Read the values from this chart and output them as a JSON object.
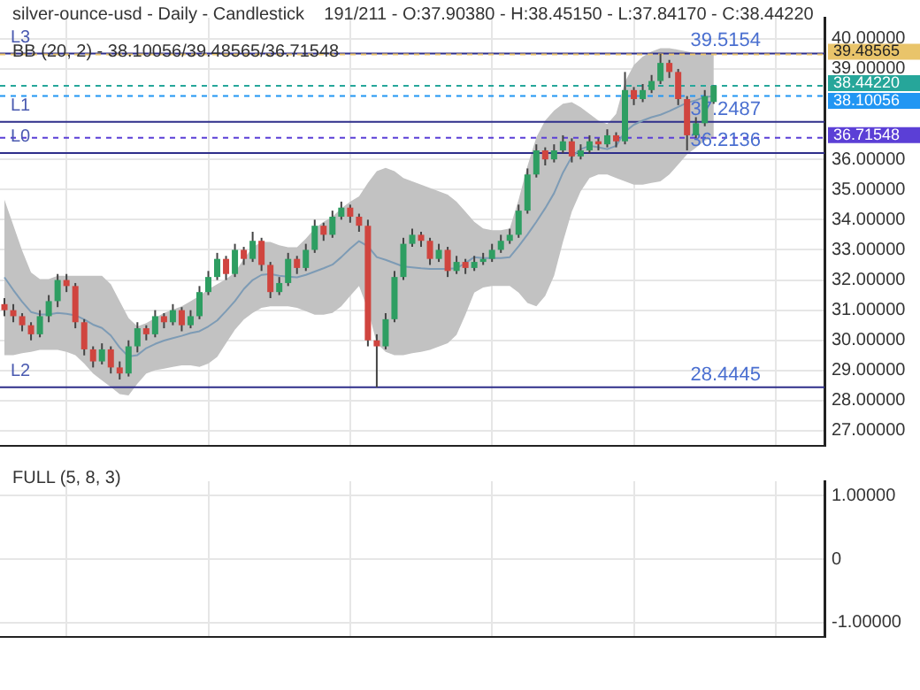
{
  "chart_data": [
    {
      "type": "candlestick",
      "title": "silver-ounce-usd - Daily - Candlestick    191/211 - O:37.90380 - H:38.45150 - L:37.84170 - C:38.44220",
      "subtitle": "BB (20, 2) - 38.10056/39.48565/36.71548",
      "categories": [
        null,
        null,
        null,
        null,
        null,
        null,
        null,
        null,
        null,
        null,
        null,
        null,
        null,
        null,
        null,
        null,
        null,
        null,
        null,
        null,
        null,
        null,
        null,
        null,
        null,
        null,
        null,
        null,
        null,
        null,
        null,
        null,
        null,
        null,
        null,
        null,
        null,
        null,
        null,
        null,
        null,
        null,
        null,
        null,
        null,
        null,
        null,
        null,
        null,
        null,
        null,
        null,
        null,
        null,
        null,
        null,
        null,
        null,
        null,
        null,
        null,
        null,
        null,
        null,
        null,
        null,
        null,
        null,
        null,
        null,
        null,
        null,
        null,
        null,
        null,
        null,
        null,
        null,
        null,
        null,
        null,
        null,
        null,
        null,
        null,
        null,
        null,
        null,
        null,
        null,
        null,
        null,
        null
      ],
      "ohlc": [
        [
          31.2,
          31.4,
          30.8,
          31.0
        ],
        [
          31.0,
          31.2,
          30.6,
          30.8
        ],
        [
          30.8,
          30.9,
          30.3,
          30.5
        ],
        [
          30.5,
          30.6,
          30.0,
          30.2
        ],
        [
          30.2,
          31.0,
          30.1,
          30.8
        ],
        [
          30.8,
          31.5,
          30.6,
          31.3
        ],
        [
          31.3,
          32.2,
          31.1,
          32.0
        ],
        [
          32.0,
          32.2,
          31.6,
          31.8
        ],
        [
          31.8,
          31.9,
          30.4,
          30.6
        ],
        [
          30.6,
          30.7,
          29.5,
          29.7
        ],
        [
          29.7,
          29.8,
          29.1,
          29.3
        ],
        [
          29.3,
          29.9,
          29.2,
          29.7
        ],
        [
          29.7,
          29.8,
          28.9,
          29.1
        ],
        [
          29.1,
          29.3,
          28.7,
          28.9
        ],
        [
          28.9,
          30.0,
          28.8,
          29.8
        ],
        [
          29.8,
          30.6,
          29.6,
          30.4
        ],
        [
          30.4,
          30.5,
          30.0,
          30.2
        ],
        [
          30.2,
          31.0,
          30.1,
          30.8
        ],
        [
          30.8,
          30.9,
          30.4,
          30.6
        ],
        [
          30.6,
          31.2,
          30.5,
          31.0
        ],
        [
          31.0,
          31.1,
          30.3,
          30.5
        ],
        [
          30.5,
          31.0,
          30.4,
          30.8
        ],
        [
          30.8,
          31.8,
          30.7,
          31.6
        ],
        [
          31.6,
          32.3,
          31.5,
          32.1
        ],
        [
          32.1,
          32.9,
          32.0,
          32.7
        ],
        [
          32.7,
          32.8,
          32.0,
          32.2
        ],
        [
          32.2,
          33.2,
          32.1,
          33.0
        ],
        [
          33.0,
          33.1,
          32.5,
          32.7
        ],
        [
          32.7,
          33.6,
          32.6,
          33.3
        ],
        [
          33.3,
          33.4,
          32.3,
          32.5
        ],
        [
          32.5,
          32.6,
          31.4,
          31.6
        ],
        [
          31.6,
          32.1,
          31.5,
          31.9
        ],
        [
          31.9,
          32.9,
          31.8,
          32.7
        ],
        [
          32.7,
          32.8,
          32.2,
          32.4
        ],
        [
          32.4,
          33.2,
          32.3,
          33.0
        ],
        [
          33.0,
          34.0,
          32.9,
          33.8
        ],
        [
          33.8,
          33.9,
          33.3,
          33.5
        ],
        [
          33.5,
          34.3,
          33.4,
          34.1
        ],
        [
          34.1,
          34.6,
          34.0,
          34.4
        ],
        [
          34.4,
          34.5,
          33.9,
          34.1
        ],
        [
          34.1,
          34.2,
          33.6,
          33.8
        ],
        [
          33.8,
          34.0,
          29.8,
          30.0
        ],
        [
          30.0,
          30.2,
          28.4445,
          29.8
        ],
        [
          29.8,
          30.9,
          29.7,
          30.7
        ],
        [
          30.7,
          32.3,
          30.6,
          32.1
        ],
        [
          32.1,
          33.4,
          32.0,
          33.2
        ],
        [
          33.2,
          33.7,
          33.1,
          33.5
        ],
        [
          33.5,
          33.6,
          33.1,
          33.3
        ],
        [
          33.3,
          33.4,
          32.5,
          32.7
        ],
        [
          32.7,
          33.2,
          32.6,
          33.0
        ],
        [
          33.0,
          33.1,
          32.1,
          32.3
        ],
        [
          32.3,
          32.8,
          32.2,
          32.6
        ],
        [
          32.6,
          32.7,
          32.2,
          32.4
        ],
        [
          32.4,
          32.8,
          32.3,
          32.6
        ],
        [
          32.6,
          32.9,
          32.5,
          32.7
        ],
        [
          32.7,
          33.2,
          32.6,
          33.0
        ],
        [
          33.0,
          33.5,
          32.9,
          33.3
        ],
        [
          33.3,
          33.7,
          33.2,
          33.5
        ],
        [
          33.5,
          34.5,
          33.4,
          34.3
        ],
        [
          34.3,
          35.7,
          34.2,
          35.5
        ],
        [
          35.5,
          36.5,
          35.4,
          36.3
        ],
        [
          36.3,
          36.4,
          35.8,
          36.0
        ],
        [
          36.0,
          36.5,
          35.9,
          36.3
        ],
        [
          36.3,
          36.8,
          36.2,
          36.6
        ],
        [
          36.6,
          36.7,
          35.9,
          36.1
        ],
        [
          36.1,
          36.5,
          36.0,
          36.3
        ],
        [
          36.3,
          36.8,
          36.2,
          36.6
        ],
        [
          36.6,
          36.7,
          36.3,
          36.5
        ],
        [
          36.5,
          37.0,
          36.4,
          36.8
        ],
        [
          36.8,
          36.9,
          36.4,
          36.6
        ],
        [
          36.6,
          38.9,
          36.5,
          38.3
        ],
        [
          38.3,
          38.4,
          37.8,
          38.0
        ],
        [
          38.0,
          38.5,
          37.9,
          38.3
        ],
        [
          38.3,
          38.8,
          38.2,
          38.6
        ],
        [
          38.6,
          39.5,
          38.5,
          39.2
        ],
        [
          39.2,
          39.3,
          38.7,
          38.9
        ],
        [
          38.9,
          39.0,
          37.8,
          38.0
        ],
        [
          38.0,
          38.1,
          36.3,
          36.8
        ],
        [
          36.8,
          37.4,
          36.7,
          37.2
        ],
        [
          37.2,
          38.3,
          37.1,
          38.1
        ],
        [
          37.9038,
          38.4515,
          37.8417,
          38.4422
        ],
        null,
        null,
        null,
        null,
        null,
        null,
        null,
        null,
        null,
        null,
        null,
        null
      ],
      "series": [
        {
          "type": "line",
          "color": "#7d9bb5",
          "values": [
            32.09,
            31.67,
            31.28,
            30.94,
            30.86,
            30.86,
            30.91,
            30.88,
            30.83,
            30.69,
            30.52,
            30.41,
            30.16,
            29.76,
            29.46,
            29.51,
            29.74,
            29.88,
            29.99,
            30.07,
            30.15,
            30.24,
            30.3,
            30.46,
            30.66,
            30.97,
            31.3,
            31.7,
            32.0,
            32.17,
            32.2,
            32.14,
            32.11,
            32.09,
            32.17,
            32.28,
            32.39,
            32.51,
            32.76,
            33.04,
            33.29,
            33.12,
            32.76,
            32.67,
            32.56,
            32.45,
            32.42,
            32.39,
            32.37,
            32.37,
            32.37,
            32.39,
            32.56,
            32.76,
            32.73,
            32.73,
            32.73,
            32.76,
            33.12,
            33.51,
            33.93,
            34.38,
            34.88,
            35.56,
            36.09,
            36.34,
            36.45,
            36.4,
            36.34,
            36.45,
            36.92,
            37.15,
            37.29,
            37.4,
            37.48,
            37.6,
            37.74,
            37.88,
            37.96,
            38.07,
            38.1,
            null,
            null,
            null,
            null,
            null,
            null,
            null,
            null,
            null,
            null,
            null,
            null
          ],
          "upper": [
            34.66,
            33.82,
            32.98,
            32.25,
            32.03,
            32.03,
            32.14,
            32.14,
            32.14,
            32.14,
            32.14,
            32.14,
            31.86,
            31.3,
            30.74,
            30.46,
            30.57,
            30.74,
            30.91,
            31.02,
            31.13,
            31.3,
            31.47,
            31.69,
            31.86,
            32.03,
            32.25,
            32.7,
            33.09,
            33.26,
            33.26,
            33.15,
            33.09,
            33.09,
            33.37,
            33.71,
            33.93,
            34.1,
            34.38,
            34.6,
            34.77,
            35.22,
            35.61,
            35.72,
            35.61,
            35.38,
            35.27,
            35.16,
            35.05,
            34.94,
            34.83,
            34.6,
            34.27,
            33.93,
            33.71,
            33.65,
            33.65,
            33.71,
            34.66,
            35.78,
            36.73,
            37.29,
            37.62,
            37.85,
            37.9,
            37.73,
            37.51,
            37.29,
            37.17,
            37.51,
            38.57,
            39.13,
            39.41,
            39.58,
            39.69,
            39.69,
            39.64,
            39.58,
            39.52,
            39.52,
            39.49,
            null,
            null,
            null,
            null,
            null,
            null,
            null,
            null,
            null,
            null,
            null,
            null
          ],
          "lower": [
            29.51,
            29.51,
            29.57,
            29.62,
            29.68,
            29.68,
            29.68,
            29.62,
            29.51,
            29.23,
            28.9,
            28.67,
            28.45,
            28.22,
            28.17,
            28.56,
            28.9,
            29.01,
            29.06,
            29.12,
            29.17,
            29.17,
            29.12,
            29.23,
            29.45,
            29.9,
            30.35,
            30.69,
            30.91,
            31.08,
            31.13,
            31.13,
            31.13,
            31.08,
            30.97,
            30.85,
            30.85,
            30.91,
            31.13,
            31.47,
            31.8,
            31.02,
            29.9,
            29.62,
            29.51,
            29.51,
            29.57,
            29.62,
            29.68,
            29.79,
            29.9,
            30.18,
            30.85,
            31.58,
            31.75,
            31.8,
            31.8,
            31.8,
            31.58,
            31.24,
            31.13,
            31.47,
            32.14,
            33.26,
            34.27,
            34.94,
            35.38,
            35.5,
            35.5,
            35.38,
            35.27,
            35.16,
            35.16,
            35.22,
            35.27,
            35.5,
            35.83,
            36.17,
            36.39,
            36.62,
            36.72,
            null,
            null,
            null,
            null,
            null,
            null,
            null,
            null,
            null,
            null,
            null,
            null
          ]
        }
      ],
      "ylim": [
        26.5,
        40.7
      ],
      "yticks": [
        {
          "value": 27,
          "label": "27.00000"
        },
        {
          "value": 28,
          "label": "28.00000"
        },
        {
          "value": 29,
          "label": "29.00000"
        },
        {
          "value": 30,
          "label": "30.00000"
        },
        {
          "value": 31,
          "label": "31.00000"
        },
        {
          "value": 32,
          "label": "32.00000"
        },
        {
          "value": 33,
          "label": "33.00000"
        },
        {
          "value": 34,
          "label": "34.00000"
        },
        {
          "value": 35,
          "label": "35.00000"
        },
        {
          "value": 36,
          "label": "36.00000"
        },
        {
          "value": 39,
          "label": "39.00000"
        },
        {
          "value": 40,
          "label": "40.00000"
        }
      ],
      "grid": true,
      "tick_labels": "y",
      "ref_lines": [
        {
          "axis": "y",
          "value": 39.5154,
          "label": "L3",
          "color": "#2e2e8a",
          "line_style": "solid"
        },
        {
          "axis": "y",
          "value": 39.48565,
          "label": "39.48565",
          "color": "#e9c46a",
          "line_style": "dashed"
        },
        {
          "axis": "y",
          "value": 38.4422,
          "label": "38.44220",
          "color": "#26a69a",
          "line_style": "dashed"
        },
        {
          "axis": "y",
          "value": 38.10056,
          "label": "38.10056",
          "color": "#2196f3",
          "line_style": "dashed"
        },
        {
          "axis": "y",
          "value": 37.2487,
          "label": "L1",
          "color": "#2e2e8a",
          "line_style": "solid"
        },
        {
          "axis": "y",
          "value": 36.71548,
          "label": "36.71548",
          "color": "#5b3fd6",
          "line_style": "dashed"
        },
        {
          "axis": "y",
          "value": 36.2136,
          "label": "L0",
          "color": "#2e2e8a",
          "line_style": "solid"
        },
        {
          "axis": "y",
          "value": 28.4445,
          "label": "L2",
          "color": "#2e2e8a",
          "line_style": "solid"
        }
      ],
      "annotations": [
        {
          "text": "39.5154",
          "y": 39.5154
        },
        {
          "text": "37.2487",
          "y": 37.2487
        },
        {
          "text": "36.2136",
          "y": 36.2136
        },
        {
          "text": "28.4445",
          "y": 28.4445
        }
      ]
    },
    {
      "type": "line",
      "title": "FULL (5, 8, 3)",
      "categories": [
        null,
        null,
        null,
        null,
        null,
        null,
        null,
        null,
        null,
        null,
        null,
        null,
        null,
        null,
        null,
        null,
        null,
        null,
        null,
        null,
        null,
        null,
        null,
        null,
        null,
        null,
        null,
        null,
        null,
        null,
        null,
        null,
        null,
        null,
        null,
        null,
        null,
        null,
        null,
        null,
        null,
        null,
        null,
        null,
        null,
        null,
        null,
        null,
        null,
        null,
        null,
        null,
        null,
        null,
        null,
        null,
        null,
        null,
        null,
        null,
        null,
        null,
        null,
        null,
        null,
        null,
        null,
        null,
        null,
        null,
        null,
        null,
        null,
        null,
        null,
        null,
        null,
        null,
        null,
        null,
        null,
        null,
        null,
        null,
        null,
        null,
        null,
        null,
        null,
        null,
        null,
        null,
        null
      ],
      "ylim": [
        -1.23,
        1.23
      ],
      "yticks": [
        {
          "value": 1,
          "label": "1.00000"
        },
        {
          "value": 0,
          "label": "0"
        },
        {
          "value": -1,
          "label": "-1.00000"
        }
      ],
      "grid": true,
      "tick_labels": "y"
    }
  ]
}
